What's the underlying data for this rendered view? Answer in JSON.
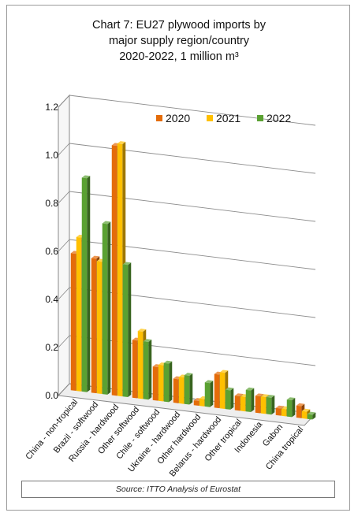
{
  "chart_data": {
    "type": "bar",
    "title_lines": [
      "Chart 7: EU27 plywood imports by",
      "major supply region/country",
      "2020-2022, 1 million m³"
    ],
    "categories": [
      "China - non-tropical",
      "Brazil - softwood",
      "Russia - hardwood",
      "Other softwood",
      "Chile - softwood",
      "Ukraine - hardwood",
      "Other hardwood",
      "Belarus - hardwood",
      "Other tropical",
      "Indonesia",
      "Gabon",
      "China tropical"
    ],
    "series": [
      {
        "name": "2020",
        "color": "#e46c0a",
        "values": [
          0.57,
          0.56,
          1.04,
          0.24,
          0.14,
          0.1,
          0.02,
          0.14,
          0.06,
          0.07,
          0.03,
          0.05
        ]
      },
      {
        "name": "2021",
        "color": "#ffc000",
        "values": [
          0.64,
          0.55,
          1.05,
          0.28,
          0.15,
          0.11,
          0.03,
          0.15,
          0.06,
          0.07,
          0.03,
          0.03
        ]
      },
      {
        "name": "2022",
        "color": "#5aa132",
        "values": [
          0.89,
          0.71,
          0.55,
          0.24,
          0.16,
          0.12,
          0.1,
          0.08,
          0.09,
          0.07,
          0.07,
          0.02
        ]
      }
    ],
    "yticks": [
      "0.0",
      "0.2",
      "0.4",
      "0.6",
      "0.8",
      "1.0",
      "1.2"
    ],
    "ylim": [
      0,
      1.2
    ],
    "legend_position": "top-right",
    "grid": true,
    "source": "Source: ITTO Analysis of Eurostat"
  }
}
